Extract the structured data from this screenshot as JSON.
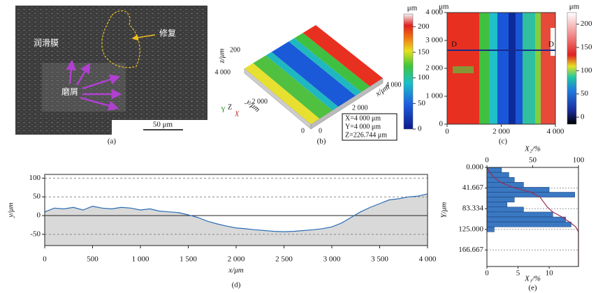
{
  "panel_a": {
    "caption": "(a)",
    "film_label": "润滑膜",
    "repair_label": "修复",
    "debris_label": "磨屑",
    "scale_bar": "50 μm"
  },
  "panel_b": {
    "caption": "(b)",
    "z_label": "z/μm",
    "y_label": "y/μm",
    "x_label": "x/μm",
    "z_ticks": [
      200
    ],
    "y_ticks": [
      0,
      {
        "value": 2000,
        "label": "2 000"
      },
      {
        "value": 4000,
        "label": "4 000"
      }
    ],
    "x_ticks": [
      0,
      {
        "value": 2000,
        "label": "2 000"
      },
      {
        "value": 4000,
        "label": "4 000"
      }
    ],
    "triad": [
      "Y",
      "Z",
      "X"
    ],
    "info": [
      "X=4 000 μm",
      "Y=4 000 μm",
      "Z=226.744 μm"
    ],
    "colorbar": {
      "unit": "μm",
      "lim": [
        0,
        225
      ],
      "ticks": [
        0,
        50,
        100,
        150,
        200
      ]
    }
  },
  "panel_c": {
    "caption": "(c)",
    "unit": "μm",
    "xlim": [
      0,
      4000
    ],
    "ylim": [
      0,
      4000
    ],
    "x_ticks": [
      0,
      {
        "value": 2000,
        "label": "2 000"
      },
      {
        "value": 4000,
        "label": "4 000"
      }
    ],
    "y_ticks": [
      0,
      {
        "value": 1000,
        "label": "1 000"
      },
      {
        "value": 2000,
        "label": "2 000"
      },
      {
        "value": 3000,
        "label": "3 000"
      },
      {
        "value": 4000,
        "label": "4 000"
      }
    ],
    "section_labels": [
      "D",
      "D"
    ],
    "colorbar": {
      "unit": "μm",
      "lim": [
        -15,
        225
      ],
      "ticks": [
        0,
        50,
        100,
        150,
        200
      ]
    }
  },
  "chart_data": [
    {
      "type": "line",
      "caption": "(d)",
      "x_label": "x/μm",
      "y_label": "y/μm",
      "x": [
        0,
        100,
        200,
        300,
        400,
        500,
        600,
        700,
        800,
        900,
        1000,
        1100,
        1200,
        1300,
        1400,
        1500,
        1600,
        1700,
        1800,
        1900,
        2000,
        2100,
        2200,
        2300,
        2400,
        2500,
        2600,
        2700,
        2800,
        2900,
        3000,
        3100,
        3200,
        3300,
        3400,
        3500,
        3600,
        3700,
        3800,
        3900,
        4000
      ],
      "values": [
        10,
        20,
        18,
        22,
        15,
        25,
        20,
        18,
        22,
        20,
        15,
        18,
        12,
        10,
        8,
        2,
        -5,
        -15,
        -22,
        -28,
        -33,
        -35,
        -38,
        -40,
        -42,
        -43,
        -42,
        -40,
        -38,
        -35,
        -30,
        -20,
        -5,
        10,
        22,
        32,
        42,
        45,
        50,
        52,
        58
      ],
      "color": "#2a6db5",
      "fill": "#d9d9d9",
      "xlim": [
        0,
        4000
      ],
      "ylim": [
        -80,
        110
      ],
      "xticks": [
        0,
        500,
        {
          "value": 1000,
          "label": "1 000"
        },
        {
          "value": 1500,
          "label": "1 500"
        },
        {
          "value": 2000,
          "label": "2 000"
        },
        {
          "value": 2500,
          "label": "2 500"
        },
        {
          "value": 3000,
          "label": "3 000"
        },
        {
          "value": 3500,
          "label": "3 500"
        },
        {
          "value": 4000,
          "label": "4 000"
        }
      ],
      "yticks": [
        -50,
        0,
        50,
        100
      ],
      "grid": true
    },
    {
      "type": "histogram",
      "caption": "(e)",
      "x2_label": "X₂/%",
      "x1_label": "X₁/%",
      "y_label": "Y/μm",
      "bins": [
        0,
        10,
        20,
        30,
        40,
        50,
        60,
        70,
        80,
        90,
        100,
        110,
        120,
        130
      ],
      "values": [
        16,
        24,
        30,
        40,
        68,
        96,
        30,
        22,
        40,
        72,
        86,
        92,
        8
      ],
      "color": "#3a78c2",
      "curve": {
        "x": [
          0,
          3,
          8,
          15,
          28,
          48,
          58,
          62,
          66,
          72,
          82,
          90,
          97,
          100,
          100
        ],
        "y": [
          0,
          10,
          20,
          30,
          40,
          50,
          60,
          70,
          80,
          90,
          100,
          110,
          120,
          130,
          200
        ],
        "color": "#9b2d52"
      },
      "xlim": [
        0,
        100
      ],
      "xticks": [
        0,
        50,
        100
      ],
      "x1lim": [
        0,
        14.7
      ],
      "x1ticks": [
        0,
        5,
        10
      ],
      "ylim": [
        0,
        200
      ],
      "yticks": [
        {
          "value": 0,
          "label": "0.000"
        },
        41.667,
        83.334,
        {
          "value": 125,
          "label": "125.000"
        },
        166.667
      ],
      "grid": true
    }
  ]
}
